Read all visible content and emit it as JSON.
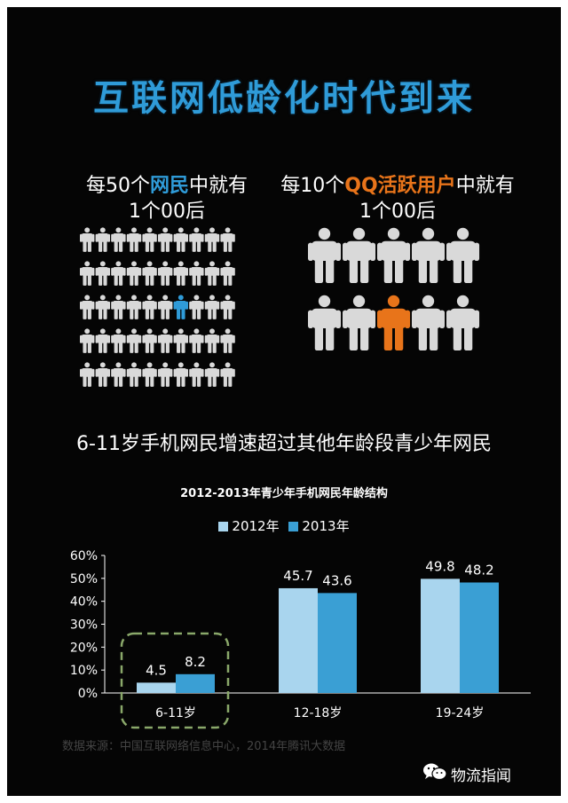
{
  "title": "互联网低龄化时代到来",
  "stat_left": {
    "pre": "每50个",
    "highlight": "网民",
    "post": "中就有",
    "line2": "1个00后"
  },
  "stat_right": {
    "pre": "每10个",
    "highlight": "QQ活跃用户",
    "post": "中就有",
    "line2": "1个00后"
  },
  "pictogram_left": {
    "total": 50,
    "highlighted": 1,
    "highlight_color": "#2f9bd8",
    "base_color": "#d9d9d9"
  },
  "pictogram_right": {
    "total": 10,
    "highlighted": 1,
    "highlight_color": "#e8741a",
    "base_color": "#d9d9d9"
  },
  "headline": "6-11岁手机网民增速超过其他年龄段青少年网民",
  "chart_data": {
    "type": "bar",
    "title": "2012-2013年青少年手机网民年龄结构",
    "categories": [
      "6-11岁",
      "12-18岁",
      "19-24岁"
    ],
    "series": [
      {
        "name": "2012年",
        "values": [
          4.5,
          45.7,
          49.8
        ],
        "color": "#a9d5ee"
      },
      {
        "name": "2013年",
        "values": [
          8.2,
          43.6,
          48.2
        ],
        "color": "#3a9fd4"
      }
    ],
    "y_ticks": [
      "0%",
      "10%",
      "20%",
      "30%",
      "40%",
      "50%",
      "60%"
    ],
    "ylim": [
      0,
      60
    ],
    "grid": false,
    "legend_position": "top-center",
    "highlighted_category": "6-11岁",
    "highlight_color": "#8aa86a"
  },
  "source": "数据来源：中国互联网络信息中心，2014年腾讯大数据",
  "brand": {
    "name": "物流指闻",
    "icon": "wechat-icon"
  }
}
